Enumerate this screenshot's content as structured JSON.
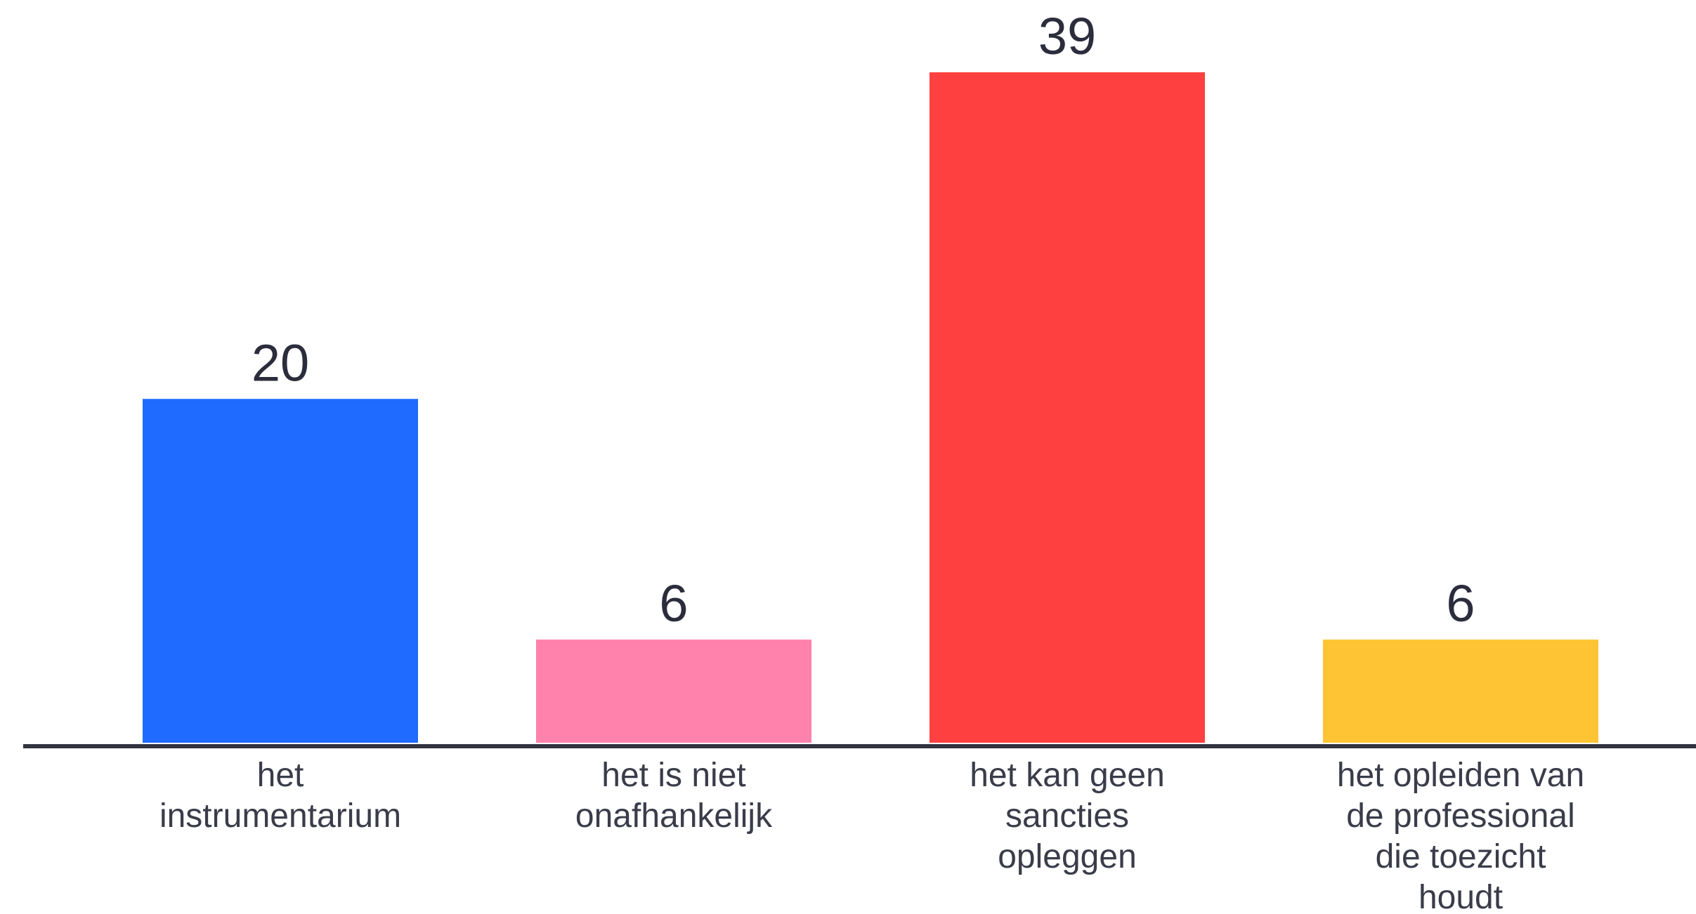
{
  "chart_data": {
    "type": "bar",
    "categories": [
      "het instrumentarium",
      "het is niet onafhankelijk",
      "het kan geen sancties opleggen",
      "het opleiden van de professional die toezicht houdt"
    ],
    "category_lines": [
      [
        "het",
        "instrumentarium"
      ],
      [
        "het is niet",
        "onafhankelijk"
      ],
      [
        "het kan geen",
        "sancties",
        "opleggen"
      ],
      [
        "het opleiden van",
        "de professional",
        "die toezicht",
        "houdt"
      ]
    ],
    "values": [
      20,
      6,
      39,
      6
    ],
    "value_labels": [
      "20",
      "6",
      "39",
      "6"
    ],
    "colors": [
      "#1f6bff",
      "#ff82ad",
      "#ff4040",
      "#fec433"
    ],
    "axis_color": "#333340",
    "ylim": [
      0,
      39
    ],
    "title": "",
    "xlabel": "",
    "ylabel": "",
    "grid": false,
    "legend": "none"
  }
}
